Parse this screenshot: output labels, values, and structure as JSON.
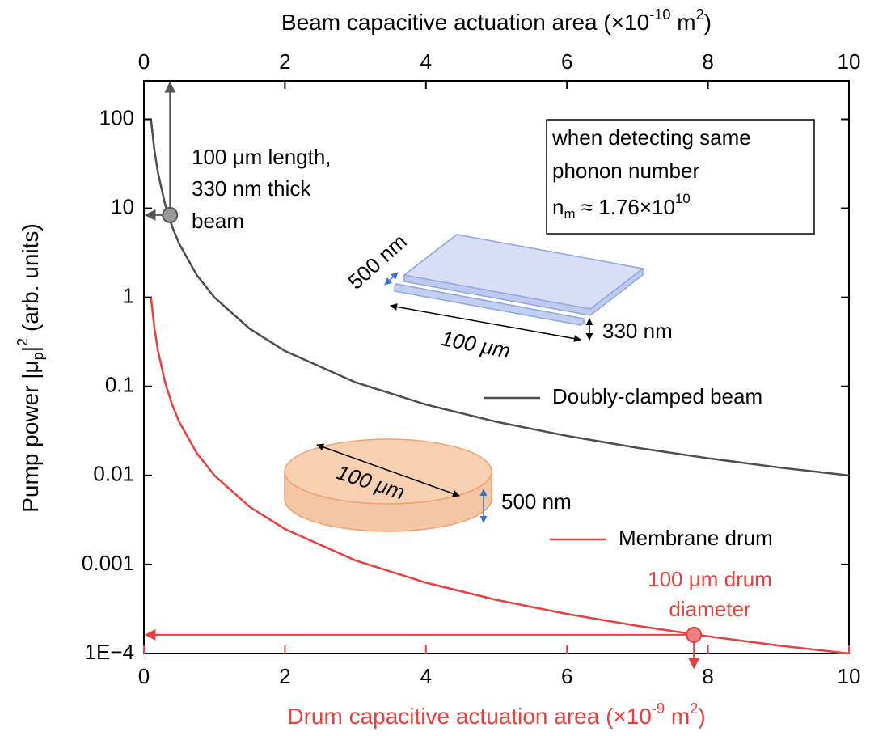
{
  "chart_data": {
    "type": "line",
    "x2label": {
      "parts": [
        {
          "text": "Beam capacitive actuation area (×10"
        },
        {
          "text": "-10",
          "style": "sup"
        },
        {
          "text": " m"
        },
        {
          "text": "2",
          "style": "sup"
        },
        {
          "text": ")"
        }
      ]
    },
    "xlabel": {
      "parts": [
        {
          "text": "Drum capacitive actuation area (×10"
        },
        {
          "text": "-9",
          "style": "sup"
        },
        {
          "text": " m"
        },
        {
          "text": "2",
          "style": "sup"
        },
        {
          "text": ")"
        }
      ]
    },
    "ylabel": {
      "parts": [
        {
          "text": "Pump power |μ"
        },
        {
          "text": "p",
          "style": "sub"
        },
        {
          "text": "|"
        },
        {
          "text": "2",
          "style": "sup"
        },
        {
          "text": " (arb. units)"
        }
      ]
    },
    "xlim": [
      0,
      10
    ],
    "xticks": [
      0,
      2,
      4,
      6,
      8,
      10
    ],
    "xtick_color": "#e8403e",
    "x2lim": [
      0,
      10
    ],
    "x2ticks": [
      0,
      2,
      4,
      6,
      8,
      10
    ],
    "ylim": [
      0.0001,
      270
    ],
    "ylog": true,
    "yticks": [
      {
        "value": 0.0001,
        "label": "1E−4"
      },
      0.001,
      0.01,
      0.1,
      1,
      10,
      100
    ],
    "grid": false,
    "series": [
      {
        "name": "Doubly-clamped beam",
        "color": "#4d4d4d",
        "axis": "x2",
        "x": [
          0.1,
          0.15,
          0.2,
          0.3,
          0.4,
          0.5,
          0.75,
          1,
          1.5,
          2,
          3,
          4,
          5,
          6,
          7,
          8,
          9,
          10
        ],
        "values": [
          100,
          44.4,
          25,
          11.1,
          6.25,
          4,
          1.78,
          1,
          0.444,
          0.25,
          0.111,
          0.0625,
          0.04,
          0.0278,
          0.0204,
          0.0156,
          0.0123,
          0.01
        ]
      },
      {
        "name": "Membrane drum",
        "color": "#e8403e",
        "x": [
          0.1,
          0.15,
          0.2,
          0.3,
          0.4,
          0.5,
          0.75,
          1,
          1.5,
          2,
          3,
          4,
          5,
          6,
          7,
          8,
          9,
          10
        ],
        "values": [
          1,
          0.444,
          0.25,
          0.111,
          0.0625,
          0.04,
          0.0178,
          0.01,
          0.00444,
          0.0025,
          0.00111,
          0.000625,
          0.0004,
          0.000278,
          0.000204,
          0.000156,
          0.000123,
          0.0001
        ]
      }
    ],
    "markers": [
      {
        "x": 0.37,
        "y": 8.4,
        "axis": "x2",
        "color": "#999999"
      },
      {
        "x": 7.8,
        "y": 0.000162,
        "color": "#f08080"
      }
    ],
    "beam_note": [
      "100 μm length,",
      "330 nm thick",
      "beam"
    ],
    "drum_note": [
      "100 μm drum",
      "diameter"
    ],
    "box_note": [
      "when detecting same",
      "phonon number",
      {
        "parts": [
          {
            "text": "n"
          },
          {
            "text": "m",
            "style": "sub"
          },
          {
            "text": " ≈ 1.76×10"
          },
          {
            "text": "10",
            "style": "sup"
          }
        ]
      }
    ],
    "diagram_labels": [
      "500 nm",
      "100 μm",
      "330 nm",
      "100 μm",
      "500 nm"
    ]
  }
}
